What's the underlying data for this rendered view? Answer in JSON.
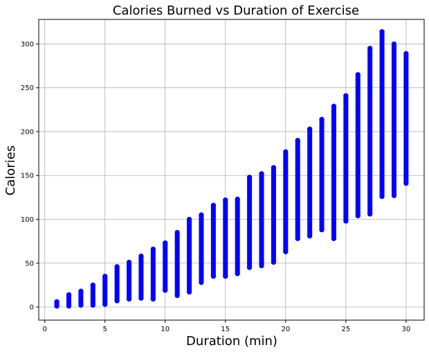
{
  "chart_data": {
    "type": "scatter",
    "title": "Calories Burned vs Duration of Exercise",
    "xlabel": "Duration (min)",
    "ylabel": "Calories",
    "xlim": [
      -0.5,
      31.5
    ],
    "ylim": [
      -15,
      328
    ],
    "xticks": [
      0,
      5,
      10,
      15,
      20,
      25,
      30
    ],
    "yticks": [
      0,
      50,
      100,
      150,
      200,
      250,
      300
    ],
    "grid": true,
    "color": "#0000ff",
    "series_ranges": [
      {
        "x": 1,
        "ymin": 1,
        "ymax": 6
      },
      {
        "x": 2,
        "ymin": 1,
        "ymax": 14
      },
      {
        "x": 3,
        "ymin": 2,
        "ymax": 18
      },
      {
        "x": 4,
        "ymin": 2,
        "ymax": 25
      },
      {
        "x": 5,
        "ymin": 3,
        "ymax": 35
      },
      {
        "x": 6,
        "ymin": 7,
        "ymax": 46
      },
      {
        "x": 7,
        "ymin": 9,
        "ymax": 51
      },
      {
        "x": 8,
        "ymin": 10,
        "ymax": 58
      },
      {
        "x": 9,
        "ymin": 9,
        "ymax": 66
      },
      {
        "x": 10,
        "ymin": 19,
        "ymax": 73
      },
      {
        "x": 11,
        "ymin": 13,
        "ymax": 85
      },
      {
        "x": 12,
        "ymin": 17,
        "ymax": 100
      },
      {
        "x": 13,
        "ymin": 28,
        "ymax": 105
      },
      {
        "x": 14,
        "ymin": 35,
        "ymax": 116
      },
      {
        "x": 15,
        "ymin": 35,
        "ymax": 122
      },
      {
        "x": 16,
        "ymin": 38,
        "ymax": 123
      },
      {
        "x": 17,
        "ymin": 45,
        "ymax": 148
      },
      {
        "x": 18,
        "ymin": 47,
        "ymax": 152
      },
      {
        "x": 19,
        "ymin": 51,
        "ymax": 159
      },
      {
        "x": 20,
        "ymin": 63,
        "ymax": 177
      },
      {
        "x": 21,
        "ymin": 78,
        "ymax": 190
      },
      {
        "x": 22,
        "ymin": 81,
        "ymax": 203
      },
      {
        "x": 23,
        "ymin": 88,
        "ymax": 214
      },
      {
        "x": 24,
        "ymin": 78,
        "ymax": 229
      },
      {
        "x": 25,
        "ymin": 98,
        "ymax": 241
      },
      {
        "x": 26,
        "ymin": 104,
        "ymax": 265
      },
      {
        "x": 27,
        "ymin": 106,
        "ymax": 295
      },
      {
        "x": 28,
        "ymin": 126,
        "ymax": 314
      },
      {
        "x": 29,
        "ymin": 127,
        "ymax": 300
      },
      {
        "x": 30,
        "ymin": 141,
        "ymax": 289
      }
    ]
  }
}
